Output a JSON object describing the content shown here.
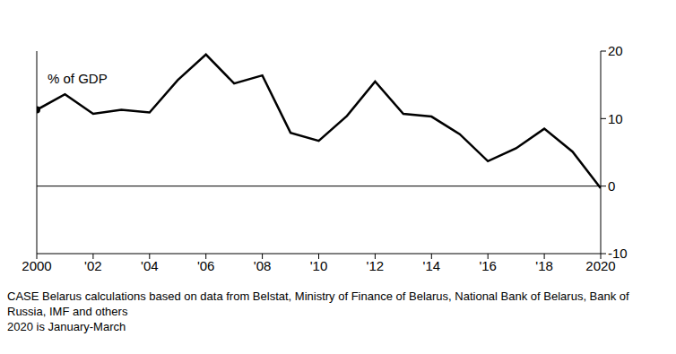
{
  "chart_data": {
    "type": "line",
    "annotation": "% of GDP",
    "source": "CASE Belarus calculations based on data from Belstat, Ministry of Finance of Belarus, National Bank of Belarus, Bank of Russia, IMF and others",
    "note": "2020 is January-March",
    "x": [
      2000,
      2001,
      2002,
      2003,
      2004,
      2005,
      2006,
      2007,
      2008,
      2009,
      2010,
      2011,
      2012,
      2013,
      2014,
      2015,
      2016,
      2017,
      2018,
      2019,
      2020
    ],
    "series": [
      {
        "name": "% of GDP",
        "color": "#000000",
        "values": [
          11.3,
          13.6,
          10.7,
          11.3,
          10.9,
          15.7,
          19.5,
          15.2,
          16.4,
          7.9,
          6.7,
          10.4,
          15.5,
          10.7,
          10.3,
          7.7,
          3.7,
          5.6,
          8.5,
          5.1,
          -0.3
        ]
      }
    ],
    "xlim": [
      2000,
      2020
    ],
    "xticks": [
      {
        "value": 2000,
        "label": "2000"
      },
      {
        "value": 2002,
        "label": "'02"
      },
      {
        "value": 2004,
        "label": "'04"
      },
      {
        "value": 2006,
        "label": "'06"
      },
      {
        "value": 2008,
        "label": "'08"
      },
      {
        "value": 2010,
        "label": "'10"
      },
      {
        "value": 2012,
        "label": "'12"
      },
      {
        "value": 2014,
        "label": "'14"
      },
      {
        "value": 2016,
        "label": "'16"
      },
      {
        "value": 2018,
        "label": "'18"
      },
      {
        "value": 2020,
        "label": "2020"
      }
    ],
    "ylim": [
      -10,
      20
    ],
    "yticks": [
      -10,
      0,
      10,
      20
    ],
    "grid": false
  }
}
